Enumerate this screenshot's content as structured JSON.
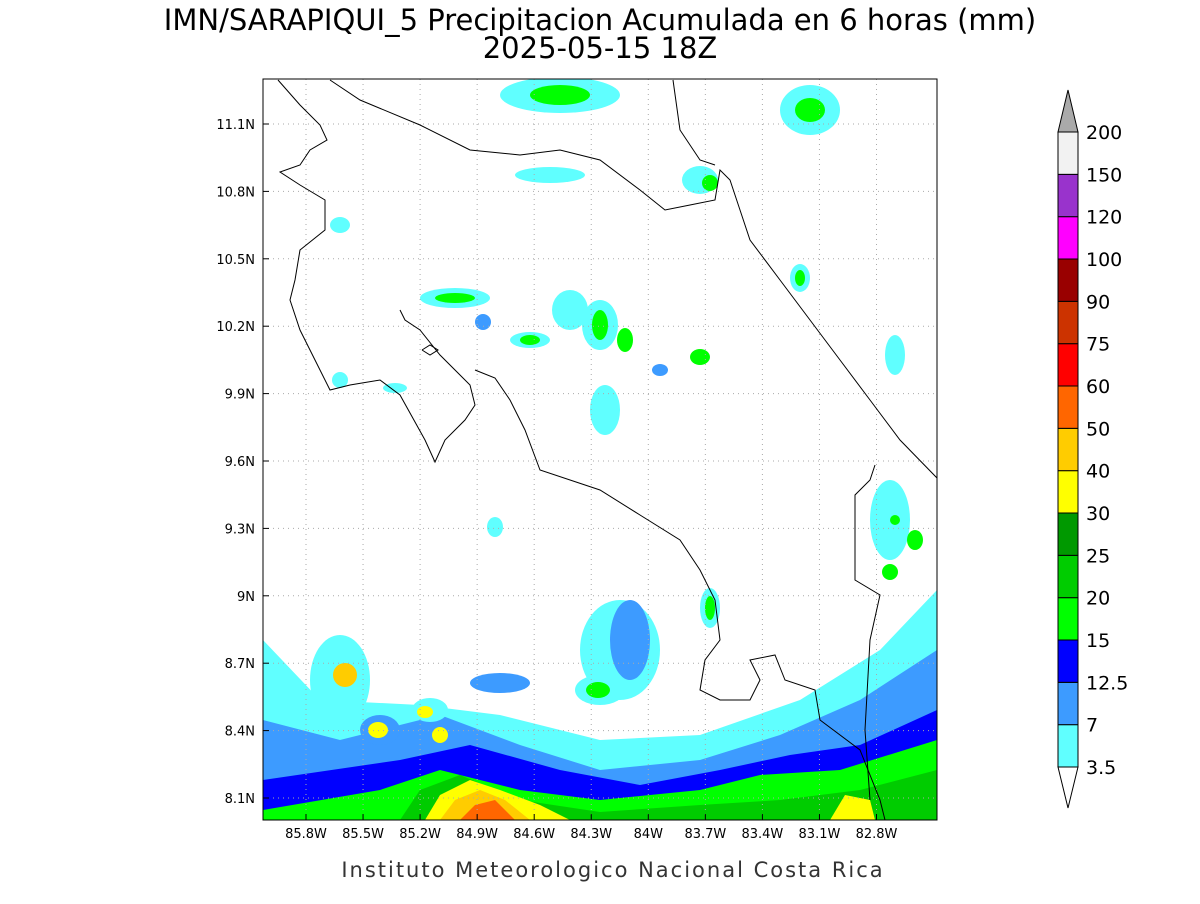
{
  "header": {
    "title": "IMN/SARAPIQUI_5 Precipitacion Acumulada en 6 horas (mm)",
    "subtitle": "2025-05-15 18Z"
  },
  "map": {
    "lon_labels": [
      "85.8W",
      "85.5W",
      "85.2W",
      "84.9W",
      "84.6W",
      "84.3W",
      "84W",
      "83.7W",
      "83.4W",
      "83.1W",
      "82.8W"
    ],
    "lat_labels": [
      "11.1N",
      "10.8N",
      "10.5N",
      "10.2N",
      "9.9N",
      "9.6N",
      "9.3N",
      "9N",
      "8.7N",
      "8.4N",
      "8.1N"
    ],
    "grid": true
  },
  "colorbar": {
    "levels": [
      "3.5",
      "7",
      "12.5",
      "15",
      "20",
      "25",
      "30",
      "40",
      "50",
      "60",
      "75",
      "90",
      "100",
      "120",
      "150",
      "200"
    ],
    "colors": [
      "#ffffff",
      "#60ffff",
      "#3d9bff",
      "#0000ff",
      "#00ff00",
      "#00cc00",
      "#009900",
      "#ffff00",
      "#ffcc00",
      "#ff6600",
      "#ff0000",
      "#cc3300",
      "#990000",
      "#ff00ff",
      "#9933cc",
      "#f2f2f2",
      "#aaaaaa"
    ]
  },
  "footer": "Instituto Meteorologico Nacional Costa Rica"
}
